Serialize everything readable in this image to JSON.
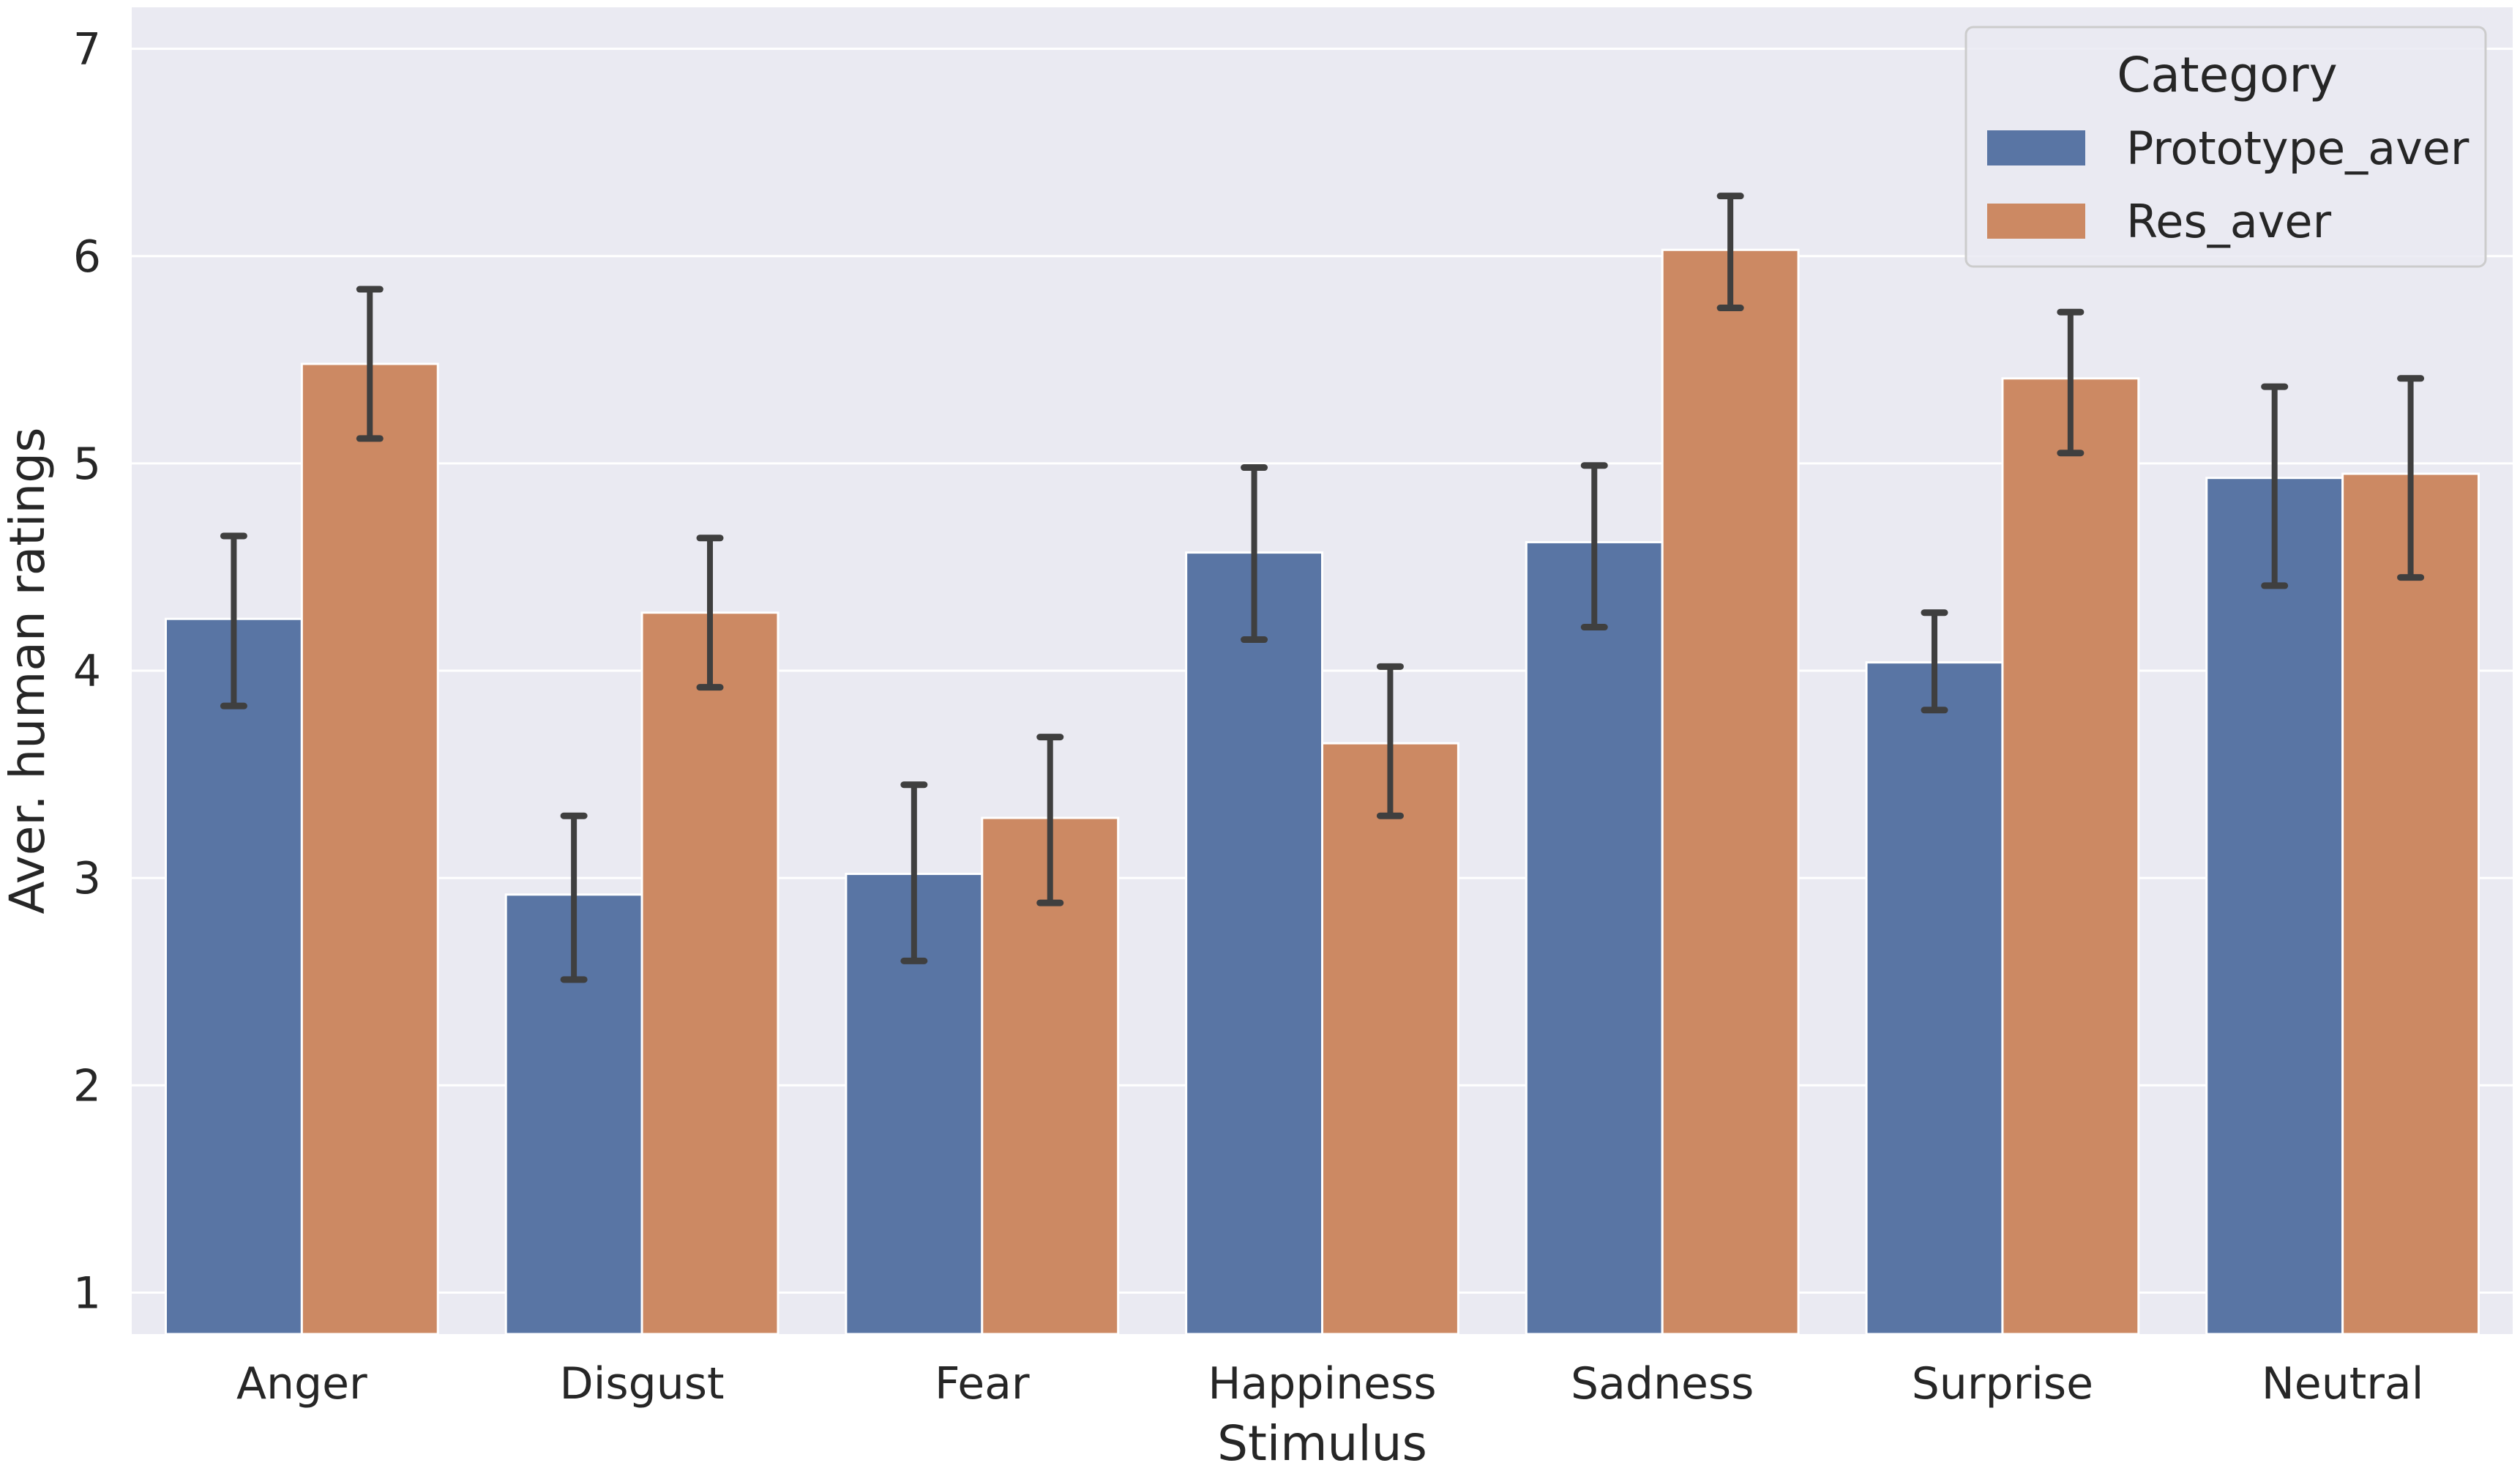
{
  "chart_data": {
    "type": "bar",
    "xlabel": "Stimulus",
    "ylabel": "Aver. human ratings",
    "ylim": [
      0.8,
      7.2
    ],
    "yticks": [
      1,
      2,
      3,
      4,
      5,
      6,
      7
    ],
    "grid": true,
    "categories": [
      "Anger",
      "Disgust",
      "Fear",
      "Happiness",
      "Sadness",
      "Surprise",
      "Neutral"
    ],
    "series": [
      {
        "name": "Prototype_aver",
        "color": "#5975a4",
        "values": [
          4.25,
          2.92,
          3.02,
          4.57,
          4.62,
          4.04,
          4.93
        ],
        "err_low": [
          3.83,
          2.51,
          2.6,
          4.15,
          4.21,
          3.81,
          4.41
        ],
        "err_high": [
          4.65,
          3.3,
          3.45,
          4.98,
          4.99,
          4.28,
          5.37
        ]
      },
      {
        "name": "Res_aver",
        "color": "#cc8963",
        "values": [
          5.48,
          4.28,
          3.29,
          3.65,
          6.03,
          5.41,
          4.95
        ],
        "err_low": [
          5.12,
          3.92,
          2.88,
          3.3,
          5.75,
          5.05,
          4.45
        ],
        "err_high": [
          5.84,
          4.64,
          3.68,
          4.02,
          6.29,
          5.73,
          5.41
        ]
      }
    ],
    "legend": {
      "title": "Category",
      "position": "top-right"
    },
    "style": {
      "background": "#eaeaf2",
      "grid_color": "#ffffff",
      "errorbar_color": "#3f3f3f"
    }
  }
}
